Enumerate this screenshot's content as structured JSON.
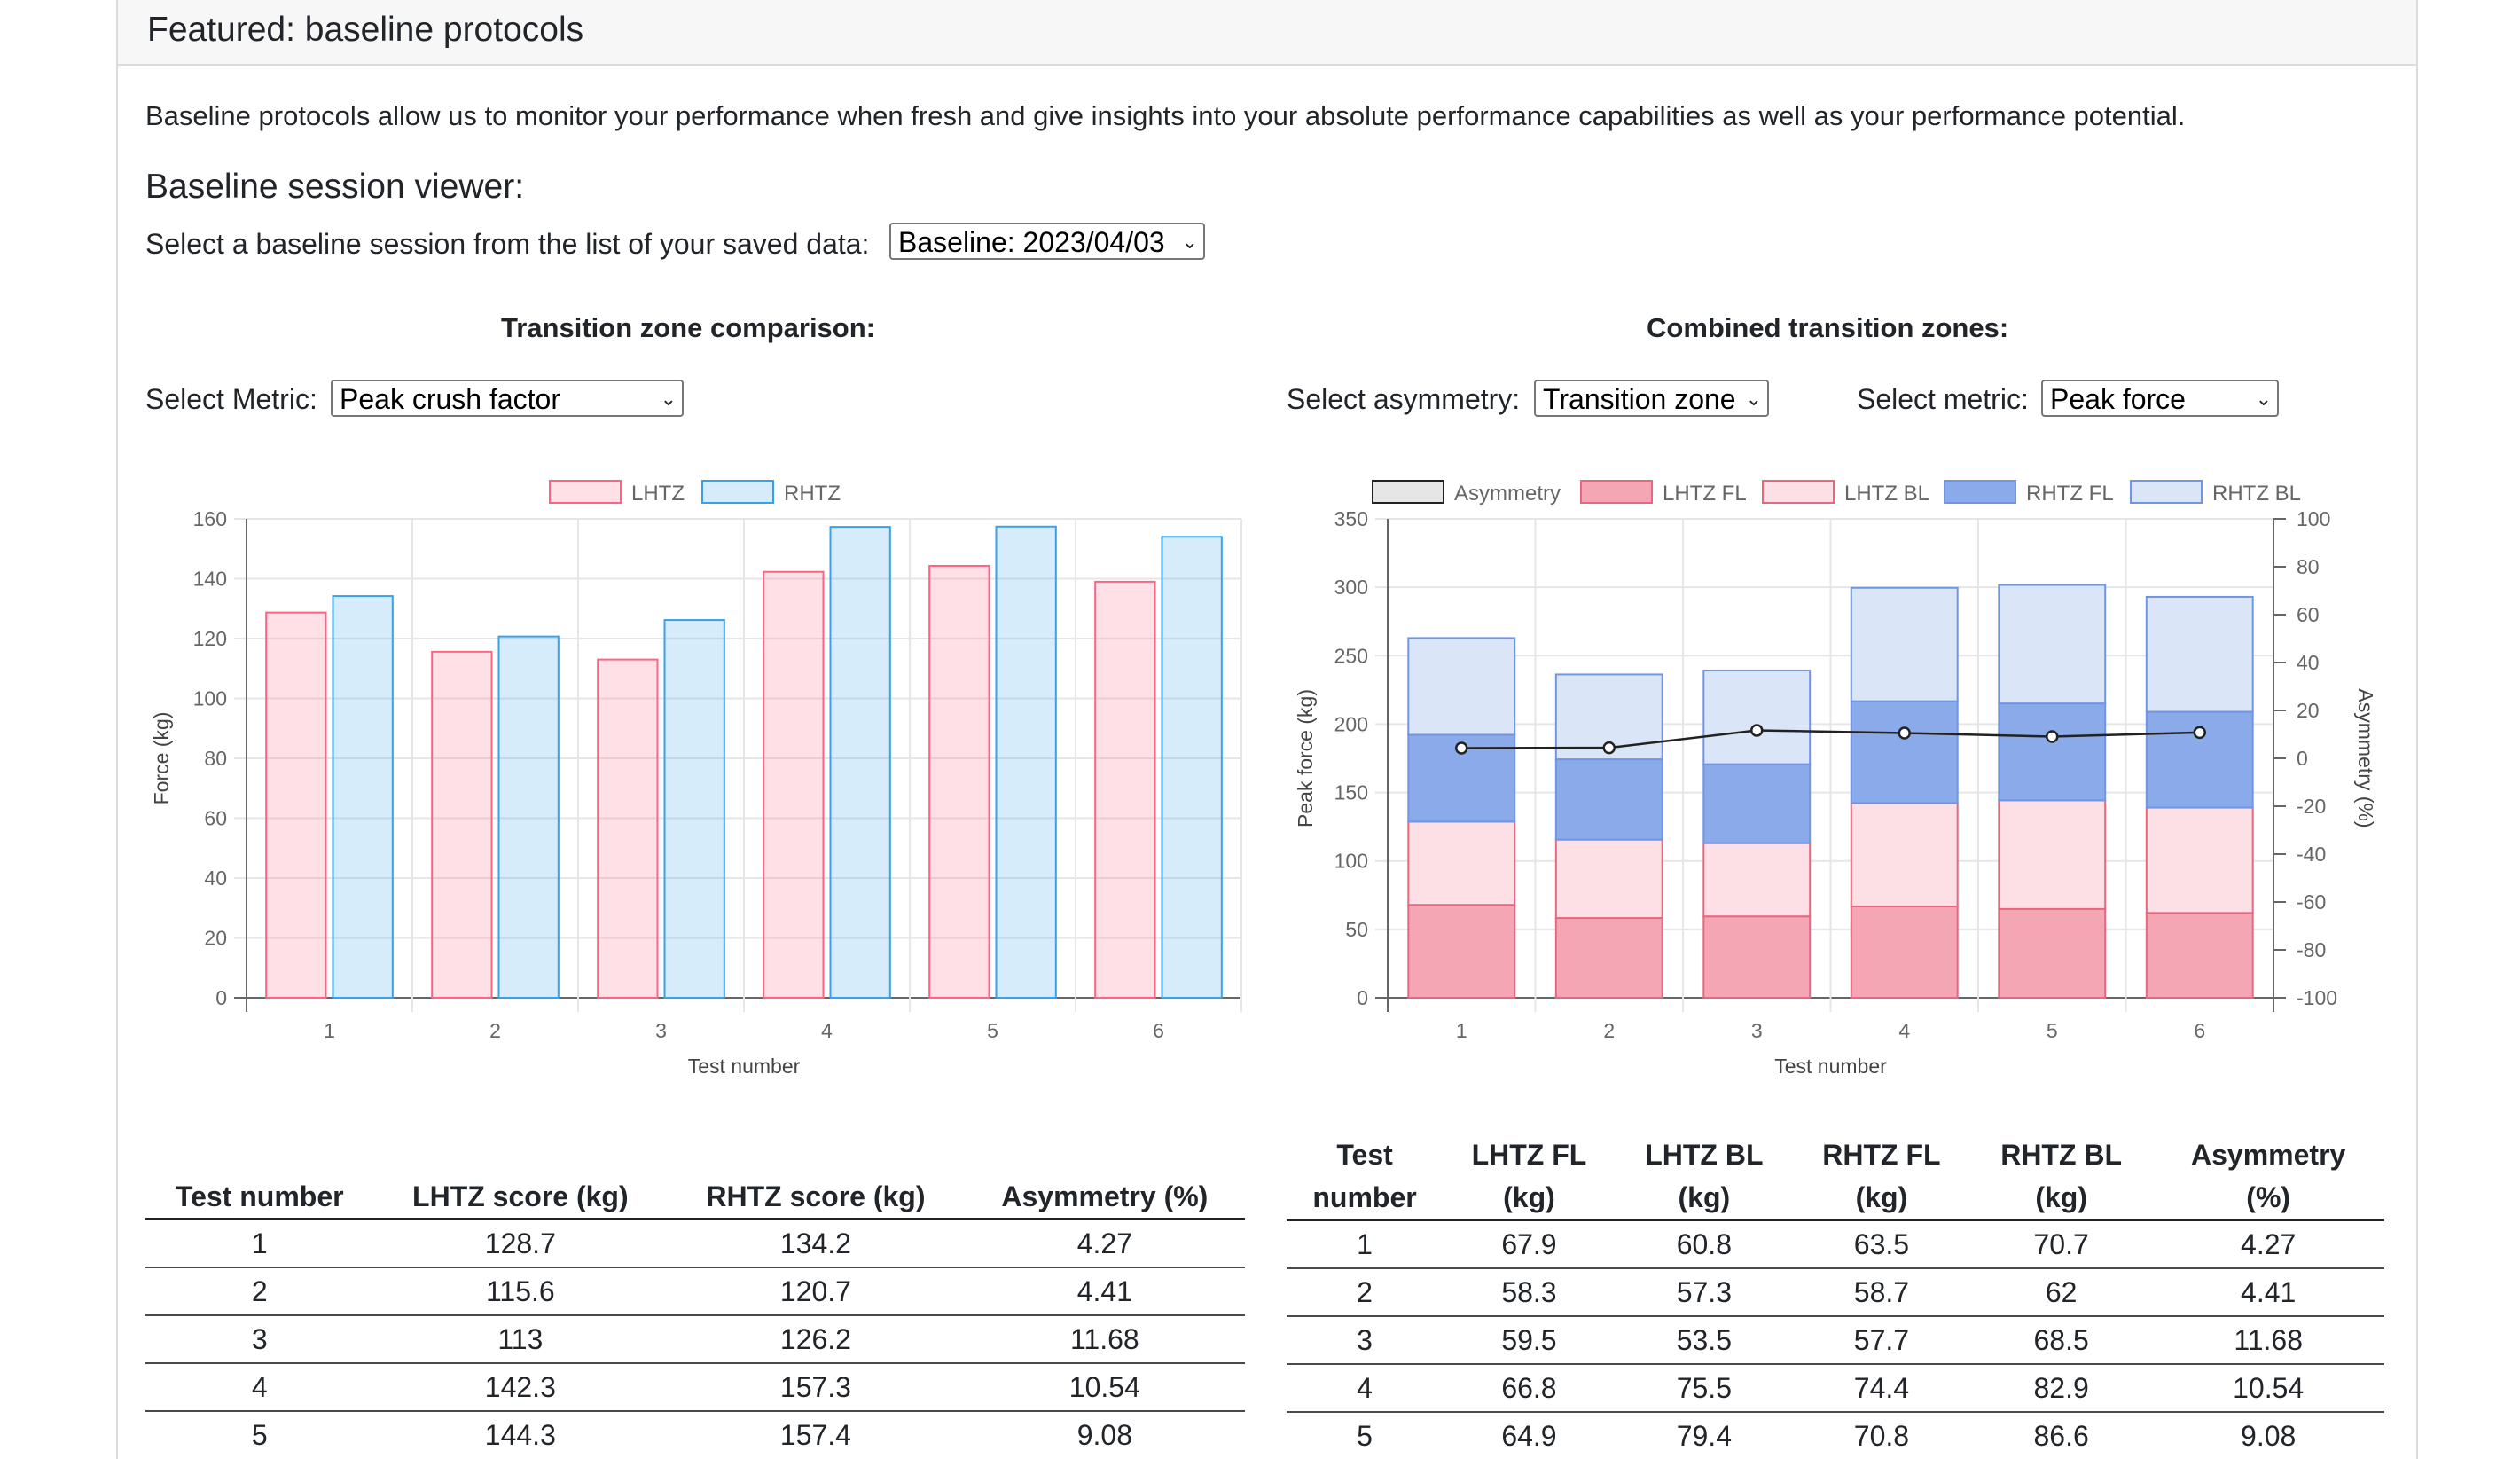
{
  "panel": {
    "title": "Featured: baseline protocols"
  },
  "intro_text": "Baseline protocols allow us to monitor your performance when fresh and give insights into your absolute performance capabilities as well as your performance potential.",
  "viewer": {
    "title": "Baseline session viewer:",
    "select_label": "Select a baseline session from the list of your saved data:",
    "session_value": "Baseline: 2023/04/03"
  },
  "left": {
    "heading": "Transition zone comparison:",
    "metric_label": "Select Metric:",
    "metric_value": "Peak crush factor",
    "table": {
      "headers": [
        "Test number",
        "LHTZ score (kg)",
        "RHTZ score (kg)",
        "Asymmetry (%)"
      ],
      "rows": [
        [
          "1",
          "128.7",
          "134.2",
          "4.27"
        ],
        [
          "2",
          "115.6",
          "120.7",
          "4.41"
        ],
        [
          "3",
          "113",
          "126.2",
          "11.68"
        ],
        [
          "4",
          "142.3",
          "157.3",
          "10.54"
        ],
        [
          "5",
          "144.3",
          "157.4",
          "9.08"
        ]
      ]
    }
  },
  "right": {
    "heading": "Combined transition zones:",
    "asym_label": "Select asymmetry:",
    "asym_value": "Transition zone",
    "metric_label": "Select metric:",
    "metric_value": "Peak force",
    "table": {
      "headers": [
        [
          "Test",
          "number"
        ],
        [
          "LHTZ FL",
          "(kg)"
        ],
        [
          "LHTZ BL",
          "(kg)"
        ],
        [
          "RHTZ FL",
          "(kg)"
        ],
        [
          "RHTZ BL",
          "(kg)"
        ],
        [
          "Asymmetry",
          "(%)"
        ]
      ],
      "rows": [
        [
          "1",
          "67.9",
          "60.8",
          "63.5",
          "70.7",
          "4.27"
        ],
        [
          "2",
          "58.3",
          "57.3",
          "58.7",
          "62",
          "4.41"
        ],
        [
          "3",
          "59.5",
          "53.5",
          "57.7",
          "68.5",
          "11.68"
        ],
        [
          "4",
          "66.8",
          "75.5",
          "74.4",
          "82.9",
          "10.54"
        ],
        [
          "5",
          "64.9",
          "79.4",
          "70.8",
          "86.6",
          "9.08"
        ]
      ]
    }
  },
  "chart_data": [
    {
      "type": "bar",
      "categories": [
        "1",
        "2",
        "3",
        "4",
        "5",
        "6"
      ],
      "series": [
        {
          "name": "LHTZ",
          "values": [
            128.7,
            115.6,
            113,
            142.3,
            144.3,
            139
          ],
          "color": "#ff6384"
        },
        {
          "name": "RHTZ",
          "values": [
            134.2,
            120.7,
            126.2,
            157.3,
            157.4,
            154
          ],
          "color": "#36a2eb"
        }
      ],
      "xlabel": "Test number",
      "ylabel": "Force (kg)",
      "ylim": [
        0,
        160
      ],
      "yticks": [
        0,
        20,
        40,
        60,
        80,
        100,
        120,
        140,
        160
      ],
      "legend": "top",
      "grid": true
    },
    {
      "type": "bar",
      "stacked": true,
      "categories": [
        "1",
        "2",
        "3",
        "4",
        "5",
        "6"
      ],
      "series": [
        {
          "name": "LHTZ FL",
          "values": [
            67.9,
            58.3,
            59.5,
            66.8,
            64.9,
            62
          ],
          "fill": "#f4a6b5",
          "stroke": "#e8677f"
        },
        {
          "name": "LHTZ BL",
          "values": [
            60.8,
            57.3,
            53.5,
            75.5,
            79.4,
            77
          ],
          "fill": "#fde0e6",
          "stroke": "#e8677f"
        },
        {
          "name": "RHTZ FL",
          "values": [
            63.5,
            58.7,
            57.7,
            74.4,
            70.8,
            70
          ],
          "fill": "#8aaaea",
          "stroke": "#6f95e3"
        },
        {
          "name": "RHTZ BL",
          "values": [
            70.7,
            62,
            68.5,
            82.9,
            86.6,
            84
          ],
          "fill": "#dbe5f8",
          "stroke": "#6f95e3"
        }
      ],
      "line_series": {
        "name": "Asymmetry",
        "values": [
          4.27,
          4.41,
          11.68,
          10.54,
          9.08,
          10.8
        ],
        "axis": "right"
      },
      "legend_order": [
        "Asymmetry",
        "LHTZ FL",
        "LHTZ BL",
        "RHTZ FL",
        "RHTZ BL"
      ],
      "xlabel": "Test number",
      "ylabel": "Peak force (kg)",
      "y2label": "Asymmetry (%)",
      "ylim": [
        0,
        350
      ],
      "yticks": [
        0,
        50,
        100,
        150,
        200,
        250,
        300,
        350
      ],
      "y2lim": [
        -100,
        100
      ],
      "y2ticks": [
        -100,
        -80,
        -60,
        -40,
        -20,
        0,
        20,
        40,
        60,
        80,
        100
      ],
      "legend": "top",
      "grid": true
    }
  ]
}
